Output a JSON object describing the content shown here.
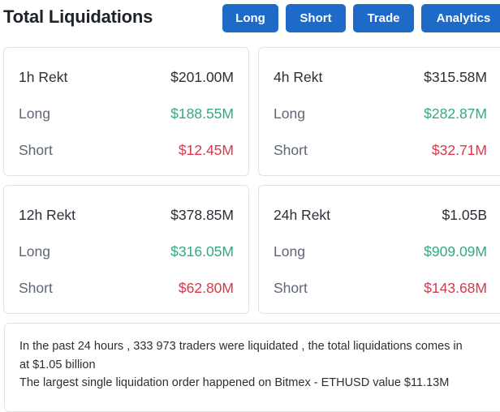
{
  "header": {
    "title": "Total Liquidations",
    "buttons": [
      "Long",
      "Short",
      "Trade",
      "Analytics"
    ]
  },
  "cards": [
    {
      "period": "1h Rekt",
      "total": "$201.00M",
      "long_label": "Long",
      "long": "$188.55M",
      "short_label": "Short",
      "short": "$12.45M"
    },
    {
      "period": "4h Rekt",
      "total": "$315.58M",
      "long_label": "Long",
      "long": "$282.87M",
      "short_label": "Short",
      "short": "$32.71M"
    },
    {
      "period": "12h Rekt",
      "total": "$378.85M",
      "long_label": "Long",
      "long": "$316.05M",
      "short_label": "Short",
      "short": "$62.80M"
    },
    {
      "period": "24h Rekt",
      "total": "$1.05B",
      "long_label": "Long",
      "long": "$909.09M",
      "short_label": "Short",
      "short": "$143.68M"
    }
  ],
  "summary": {
    "line1": "In the past 24 hours , 333 973 traders were liquidated , the total liquidations comes in",
    "line2": "at $1.05 billion",
    "line3": "The largest single liquidation order happened on Bitmex - ETHUSD value $11.13M"
  },
  "colors": {
    "accent": "#1d6ac9",
    "long": "#2eaa86",
    "short": "#e0344a"
  }
}
